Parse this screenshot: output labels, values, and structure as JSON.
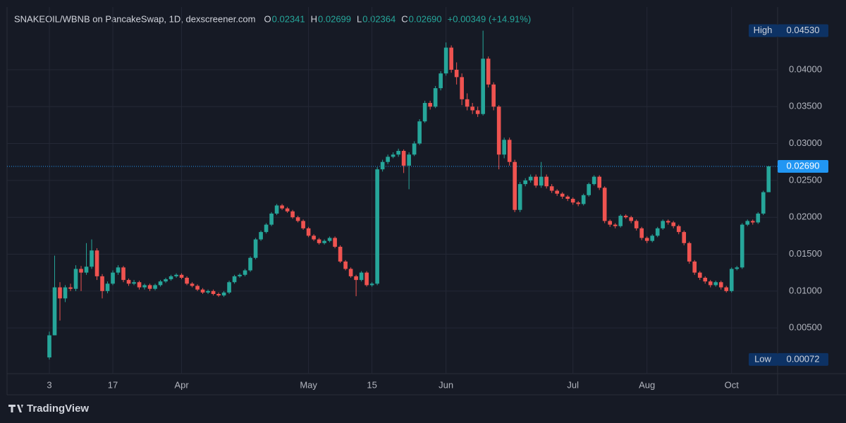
{
  "chart_data": {
    "type": "candlestick",
    "title": "SNAKEOIL/WBNB on PancakeSwap, 1D, dexscreener.com",
    "header": [
      {
        "key": "O",
        "value": "0.02341"
      },
      {
        "key": "H",
        "value": "0.02699"
      },
      {
        "key": "L",
        "value": "0.02364"
      },
      {
        "key": "C",
        "value": "0.02690"
      }
    ],
    "change": "+0.00349 (+14.91%)",
    "up_color": "#26a69a",
    "down_color": "#ef5350",
    "grid": true,
    "ylim": [
      -0.0012,
      0.0485
    ],
    "yticks": [
      {
        "value": 0.005,
        "label": "0.00500"
      },
      {
        "value": 0.01,
        "label": "0.01000"
      },
      {
        "value": 0.015,
        "label": "0.01500"
      },
      {
        "value": 0.02,
        "label": "0.02000"
      },
      {
        "value": 0.025,
        "label": "0.02500"
      },
      {
        "value": 0.03,
        "label": "0.03000"
      },
      {
        "value": 0.035,
        "label": "0.03500"
      },
      {
        "value": 0.04,
        "label": "0.04000"
      }
    ],
    "xlim": [
      -8,
      137.3
    ],
    "xticks": [
      {
        "value": 0,
        "label": "3"
      },
      {
        "value": 12,
        "label": "17"
      },
      {
        "value": 25,
        "label": "Apr"
      },
      {
        "value": 49,
        "label": "May"
      },
      {
        "value": 61,
        "label": "15"
      },
      {
        "value": 75,
        "label": "Jun"
      },
      {
        "value": 99,
        "label": "Jul"
      },
      {
        "value": 113,
        "label": "Aug"
      },
      {
        "value": 129,
        "label": "Oct"
      }
    ],
    "last_price": {
      "value": 0.0269,
      "label": "0.02690"
    },
    "high": {
      "name": "High",
      "value": 0.0453,
      "label": "0.04530"
    },
    "low": {
      "name": "Low",
      "value": 0.00072,
      "label": "0.00072"
    },
    "brand": "TradingView",
    "ohlc": [
      [
        0.001,
        0.0045,
        0.00072,
        0.004
      ],
      [
        0.004,
        0.0148,
        0.004,
        0.0105
      ],
      [
        0.0105,
        0.0112,
        0.006,
        0.009
      ],
      [
        0.009,
        0.0108,
        0.0085,
        0.0105
      ],
      [
        0.0105,
        0.011,
        0.01,
        0.0103
      ],
      [
        0.0103,
        0.0135,
        0.01,
        0.013
      ],
      [
        0.013,
        0.0134,
        0.01,
        0.0125
      ],
      [
        0.0125,
        0.0165,
        0.0122,
        0.0133
      ],
      [
        0.0133,
        0.017,
        0.013,
        0.0155
      ],
      [
        0.0155,
        0.0158,
        0.0115,
        0.012
      ],
      [
        0.012,
        0.0123,
        0.009,
        0.01
      ],
      [
        0.01,
        0.0113,
        0.0097,
        0.011
      ],
      [
        0.011,
        0.0128,
        0.0108,
        0.0125
      ],
      [
        0.0125,
        0.0135,
        0.0122,
        0.0132
      ],
      [
        0.0132,
        0.0134,
        0.0112,
        0.0115
      ],
      [
        0.0115,
        0.0117,
        0.0107,
        0.011
      ],
      [
        0.011,
        0.0115,
        0.0108,
        0.0112
      ],
      [
        0.0112,
        0.0114,
        0.0102,
        0.0105
      ],
      [
        0.0105,
        0.011,
        0.0102,
        0.0108
      ],
      [
        0.0108,
        0.011,
        0.01,
        0.0103
      ],
      [
        0.0103,
        0.011,
        0.0101,
        0.0108
      ],
      [
        0.0108,
        0.0115,
        0.0106,
        0.0113
      ],
      [
        0.0113,
        0.0118,
        0.0111,
        0.0116
      ],
      [
        0.0116,
        0.0122,
        0.0114,
        0.012
      ],
      [
        0.012,
        0.0124,
        0.0118,
        0.0122
      ],
      [
        0.0122,
        0.0124,
        0.0116,
        0.0118
      ],
      [
        0.0118,
        0.012,
        0.0108,
        0.011
      ],
      [
        0.011,
        0.0112,
        0.0105,
        0.0107
      ],
      [
        0.0107,
        0.0109,
        0.01,
        0.0102
      ],
      [
        0.0102,
        0.0104,
        0.0096,
        0.0098
      ],
      [
        0.0098,
        0.0102,
        0.0096,
        0.01
      ],
      [
        0.01,
        0.0102,
        0.0094,
        0.0096
      ],
      [
        0.0096,
        0.0098,
        0.0092,
        0.0094
      ],
      [
        0.0094,
        0.01,
        0.0092,
        0.0098
      ],
      [
        0.0098,
        0.0114,
        0.0096,
        0.0112
      ],
      [
        0.0112,
        0.0122,
        0.011,
        0.012
      ],
      [
        0.012,
        0.0124,
        0.0118,
        0.0122
      ],
      [
        0.0122,
        0.013,
        0.012,
        0.0128
      ],
      [
        0.0128,
        0.0147,
        0.0126,
        0.0145
      ],
      [
        0.0145,
        0.0172,
        0.0143,
        0.017
      ],
      [
        0.017,
        0.0182,
        0.0168,
        0.018
      ],
      [
        0.018,
        0.0192,
        0.0178,
        0.019
      ],
      [
        0.019,
        0.0207,
        0.0188,
        0.0205
      ],
      [
        0.0205,
        0.0218,
        0.0203,
        0.0216
      ],
      [
        0.0216,
        0.0218,
        0.021,
        0.0212
      ],
      [
        0.0212,
        0.0214,
        0.0206,
        0.0208
      ],
      [
        0.0208,
        0.021,
        0.0198,
        0.02
      ],
      [
        0.02,
        0.0202,
        0.0193,
        0.0195
      ],
      [
        0.0195,
        0.0197,
        0.0183,
        0.0185
      ],
      [
        0.0185,
        0.0187,
        0.0173,
        0.0175
      ],
      [
        0.0175,
        0.0177,
        0.0168,
        0.017
      ],
      [
        0.017,
        0.0172,
        0.0163,
        0.0165
      ],
      [
        0.0165,
        0.017,
        0.0163,
        0.0168
      ],
      [
        0.0168,
        0.0174,
        0.0166,
        0.0172
      ],
      [
        0.0172,
        0.0174,
        0.0158,
        0.016
      ],
      [
        0.016,
        0.0162,
        0.0138,
        0.014
      ],
      [
        0.014,
        0.0142,
        0.0128,
        0.013
      ],
      [
        0.013,
        0.0132,
        0.0118,
        0.012
      ],
      [
        0.012,
        0.0122,
        0.0093,
        0.0115
      ],
      [
        0.0115,
        0.0127,
        0.0113,
        0.0125
      ],
      [
        0.0125,
        0.0127,
        0.0106,
        0.0108
      ],
      [
        0.0108,
        0.0112,
        0.0106,
        0.011
      ],
      [
        0.011,
        0.0268,
        0.0108,
        0.0265
      ],
      [
        0.0265,
        0.0278,
        0.0262,
        0.0275
      ],
      [
        0.0275,
        0.0285,
        0.0272,
        0.0282
      ],
      [
        0.0282,
        0.0288,
        0.028,
        0.0285
      ],
      [
        0.0285,
        0.0293,
        0.0282,
        0.029
      ],
      [
        0.029,
        0.0292,
        0.026,
        0.027
      ],
      [
        0.027,
        0.0288,
        0.0238,
        0.0285
      ],
      [
        0.0285,
        0.0303,
        0.0283,
        0.03
      ],
      [
        0.03,
        0.0333,
        0.0298,
        0.033
      ],
      [
        0.033,
        0.0358,
        0.0328,
        0.0355
      ],
      [
        0.0355,
        0.0358,
        0.0346,
        0.035
      ],
      [
        0.035,
        0.0378,
        0.0348,
        0.0375
      ],
      [
        0.0375,
        0.0398,
        0.0372,
        0.0395
      ],
      [
        0.0395,
        0.0437,
        0.0392,
        0.043
      ],
      [
        0.043,
        0.0433,
        0.0396,
        0.04
      ],
      [
        0.04,
        0.041,
        0.038,
        0.039
      ],
      [
        0.039,
        0.0395,
        0.0352,
        0.036
      ],
      [
        0.036,
        0.0368,
        0.0345,
        0.035
      ],
      [
        0.035,
        0.0355,
        0.034,
        0.0345
      ],
      [
        0.0345,
        0.035,
        0.0336,
        0.034
      ],
      [
        0.034,
        0.0453,
        0.0338,
        0.0415
      ],
      [
        0.0415,
        0.0418,
        0.0376,
        0.038
      ],
      [
        0.038,
        0.0383,
        0.0345,
        0.035
      ],
      [
        0.035,
        0.0352,
        0.0265,
        0.0285
      ],
      [
        0.0285,
        0.0308,
        0.028,
        0.0305
      ],
      [
        0.0305,
        0.0308,
        0.027,
        0.0275
      ],
      [
        0.0275,
        0.0278,
        0.0207,
        0.021
      ],
      [
        0.021,
        0.0248,
        0.0207,
        0.0245
      ],
      [
        0.0245,
        0.0253,
        0.0242,
        0.025
      ],
      [
        0.025,
        0.0258,
        0.0247,
        0.0255
      ],
      [
        0.0255,
        0.0258,
        0.024,
        0.0243
      ],
      [
        0.0243,
        0.0275,
        0.024,
        0.0255
      ],
      [
        0.0255,
        0.0258,
        0.0239,
        0.0242
      ],
      [
        0.0242,
        0.0245,
        0.0233,
        0.0236
      ],
      [
        0.0236,
        0.0238,
        0.0229,
        0.0232
      ],
      [
        0.0232,
        0.0234,
        0.0225,
        0.0228
      ],
      [
        0.0228,
        0.023,
        0.0222,
        0.0225
      ],
      [
        0.0225,
        0.0227,
        0.0217,
        0.022
      ],
      [
        0.022,
        0.0222,
        0.0215,
        0.0218
      ],
      [
        0.0218,
        0.0232,
        0.0216,
        0.023
      ],
      [
        0.023,
        0.0247,
        0.0228,
        0.0245
      ],
      [
        0.0245,
        0.0257,
        0.0243,
        0.0255
      ],
      [
        0.0255,
        0.0257,
        0.0237,
        0.024
      ],
      [
        0.024,
        0.0242,
        0.0192,
        0.0195
      ],
      [
        0.0195,
        0.0197,
        0.0187,
        0.019
      ],
      [
        0.019,
        0.0192,
        0.0185,
        0.0188
      ],
      [
        0.0188,
        0.0204,
        0.0186,
        0.0202
      ],
      [
        0.0202,
        0.0204,
        0.0198,
        0.02
      ],
      [
        0.02,
        0.0202,
        0.0192,
        0.0195
      ],
      [
        0.0195,
        0.0197,
        0.0182,
        0.0185
      ],
      [
        0.0185,
        0.0187,
        0.0169,
        0.0172
      ],
      [
        0.0172,
        0.0174,
        0.0165,
        0.0168
      ],
      [
        0.0168,
        0.0177,
        0.0166,
        0.0175
      ],
      [
        0.0175,
        0.0187,
        0.0173,
        0.0185
      ],
      [
        0.0185,
        0.0197,
        0.0183,
        0.0195
      ],
      [
        0.0195,
        0.0197,
        0.019,
        0.0193
      ],
      [
        0.0193,
        0.0195,
        0.0185,
        0.0188
      ],
      [
        0.0188,
        0.019,
        0.0177,
        0.018
      ],
      [
        0.018,
        0.0182,
        0.0162,
        0.0165
      ],
      [
        0.0165,
        0.0167,
        0.0137,
        0.014
      ],
      [
        0.014,
        0.0142,
        0.0122,
        0.0125
      ],
      [
        0.0125,
        0.0127,
        0.0115,
        0.0118
      ],
      [
        0.0118,
        0.012,
        0.011,
        0.0113
      ],
      [
        0.0113,
        0.0115,
        0.0105,
        0.0108
      ],
      [
        0.0108,
        0.0114,
        0.0106,
        0.0112
      ],
      [
        0.0112,
        0.0114,
        0.0102,
        0.0105
      ],
      [
        0.0105,
        0.0107,
        0.0098,
        0.01
      ],
      [
        0.01,
        0.0132,
        0.0098,
        0.013
      ],
      [
        0.013,
        0.0134,
        0.0128,
        0.0132
      ],
      [
        0.0132,
        0.0192,
        0.013,
        0.019
      ],
      [
        0.019,
        0.0197,
        0.0188,
        0.0195
      ],
      [
        0.0195,
        0.0197,
        0.019,
        0.0193
      ],
      [
        0.0193,
        0.0207,
        0.0191,
        0.0205
      ],
      [
        0.0205,
        0.0236,
        0.0203,
        0.0234
      ],
      [
        0.0234,
        0.02699,
        0.02364,
        0.0269
      ]
    ]
  }
}
